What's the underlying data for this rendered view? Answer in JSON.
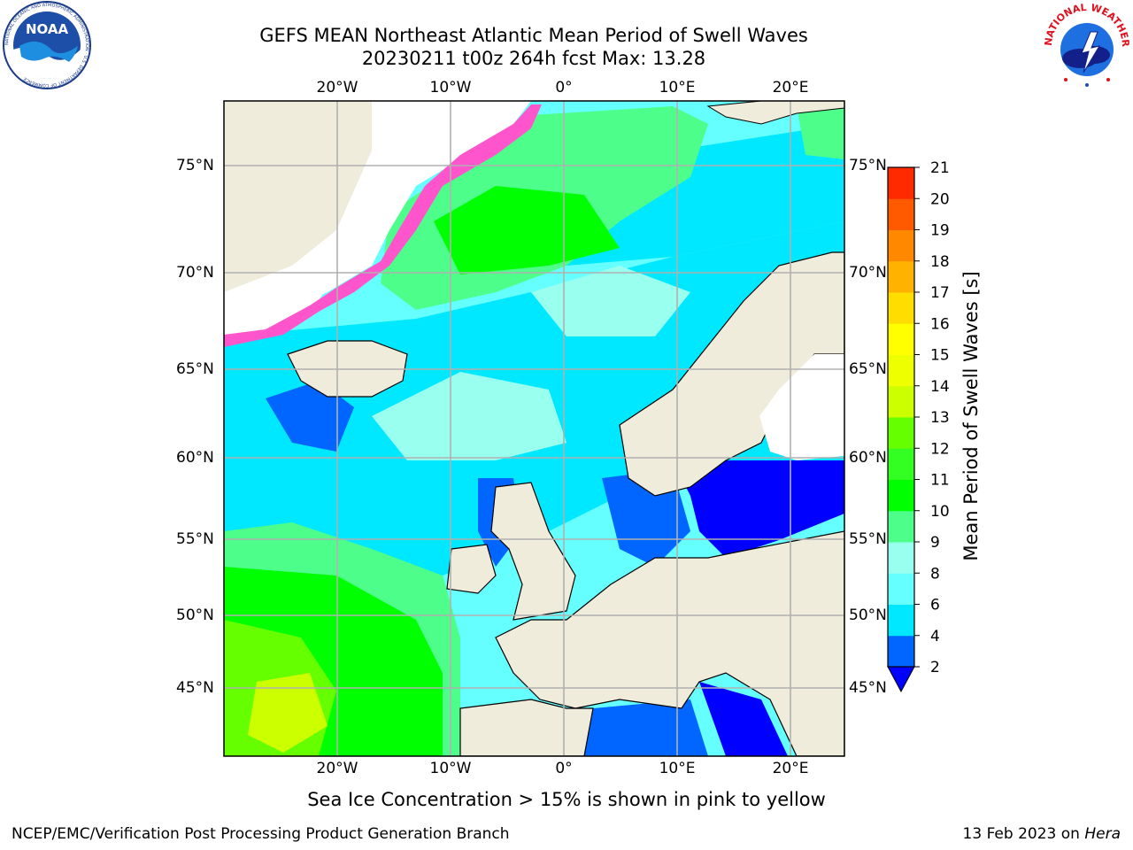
{
  "header": {
    "title_line1": "GEFS MEAN Northeast Atlantic Mean Period of Swell Waves",
    "title_line2": "20230211 t00z 264h fcst   Max: 13.28"
  },
  "logos": {
    "left": "NOAA",
    "left_ring_text": "NATIONAL OCEANIC AND ATMOSPHERIC ADMINISTRATION · U.S. DEPARTMENT OF COMMERCE",
    "right_ring_text": "NATIONAL WEATHER SERVICE"
  },
  "map": {
    "lon_labels": [
      "20°W",
      "10°W",
      "0°",
      "10°E",
      "20°E"
    ],
    "lat_labels": [
      "75°N",
      "70°N",
      "65°N",
      "60°N",
      "55°N",
      "50°N",
      "45°N"
    ],
    "land_color": "#efecdc",
    "ocean_colors": [
      "#0066ff",
      "#00e8ff",
      "#66ffff",
      "#99ffee",
      "#4dff8a",
      "#00ff00",
      "#33ff22"
    ]
  },
  "colorbar": {
    "label": "Mean Period of Swell Waves [s]",
    "ticks": [
      "2",
      "4",
      "6",
      "8",
      "9",
      "10",
      "11",
      "12",
      "13",
      "14",
      "15",
      "16",
      "17",
      "18",
      "19",
      "20",
      "21"
    ],
    "colors": [
      "#0066ff",
      "#00e8ff",
      "#66ffff",
      "#99ffee",
      "#4dff8a",
      "#00ff00",
      "#33ff22",
      "#66ff00",
      "#ccff00",
      "#eeff00",
      "#ffff00",
      "#ffdd00",
      "#ffb300",
      "#ff8800",
      "#ff5a00",
      "#ff2a00"
    ],
    "extend_color": "#0000ff"
  },
  "footer": {
    "note": "Sea Ice Concentration > 15% is shown in pink to yellow",
    "credit_left": "NCEP/EMC/Verification Post Processing Product Generation Branch",
    "credit_right_prefix": "13 Feb 2023 on",
    "credit_right_machine": "Hera"
  }
}
